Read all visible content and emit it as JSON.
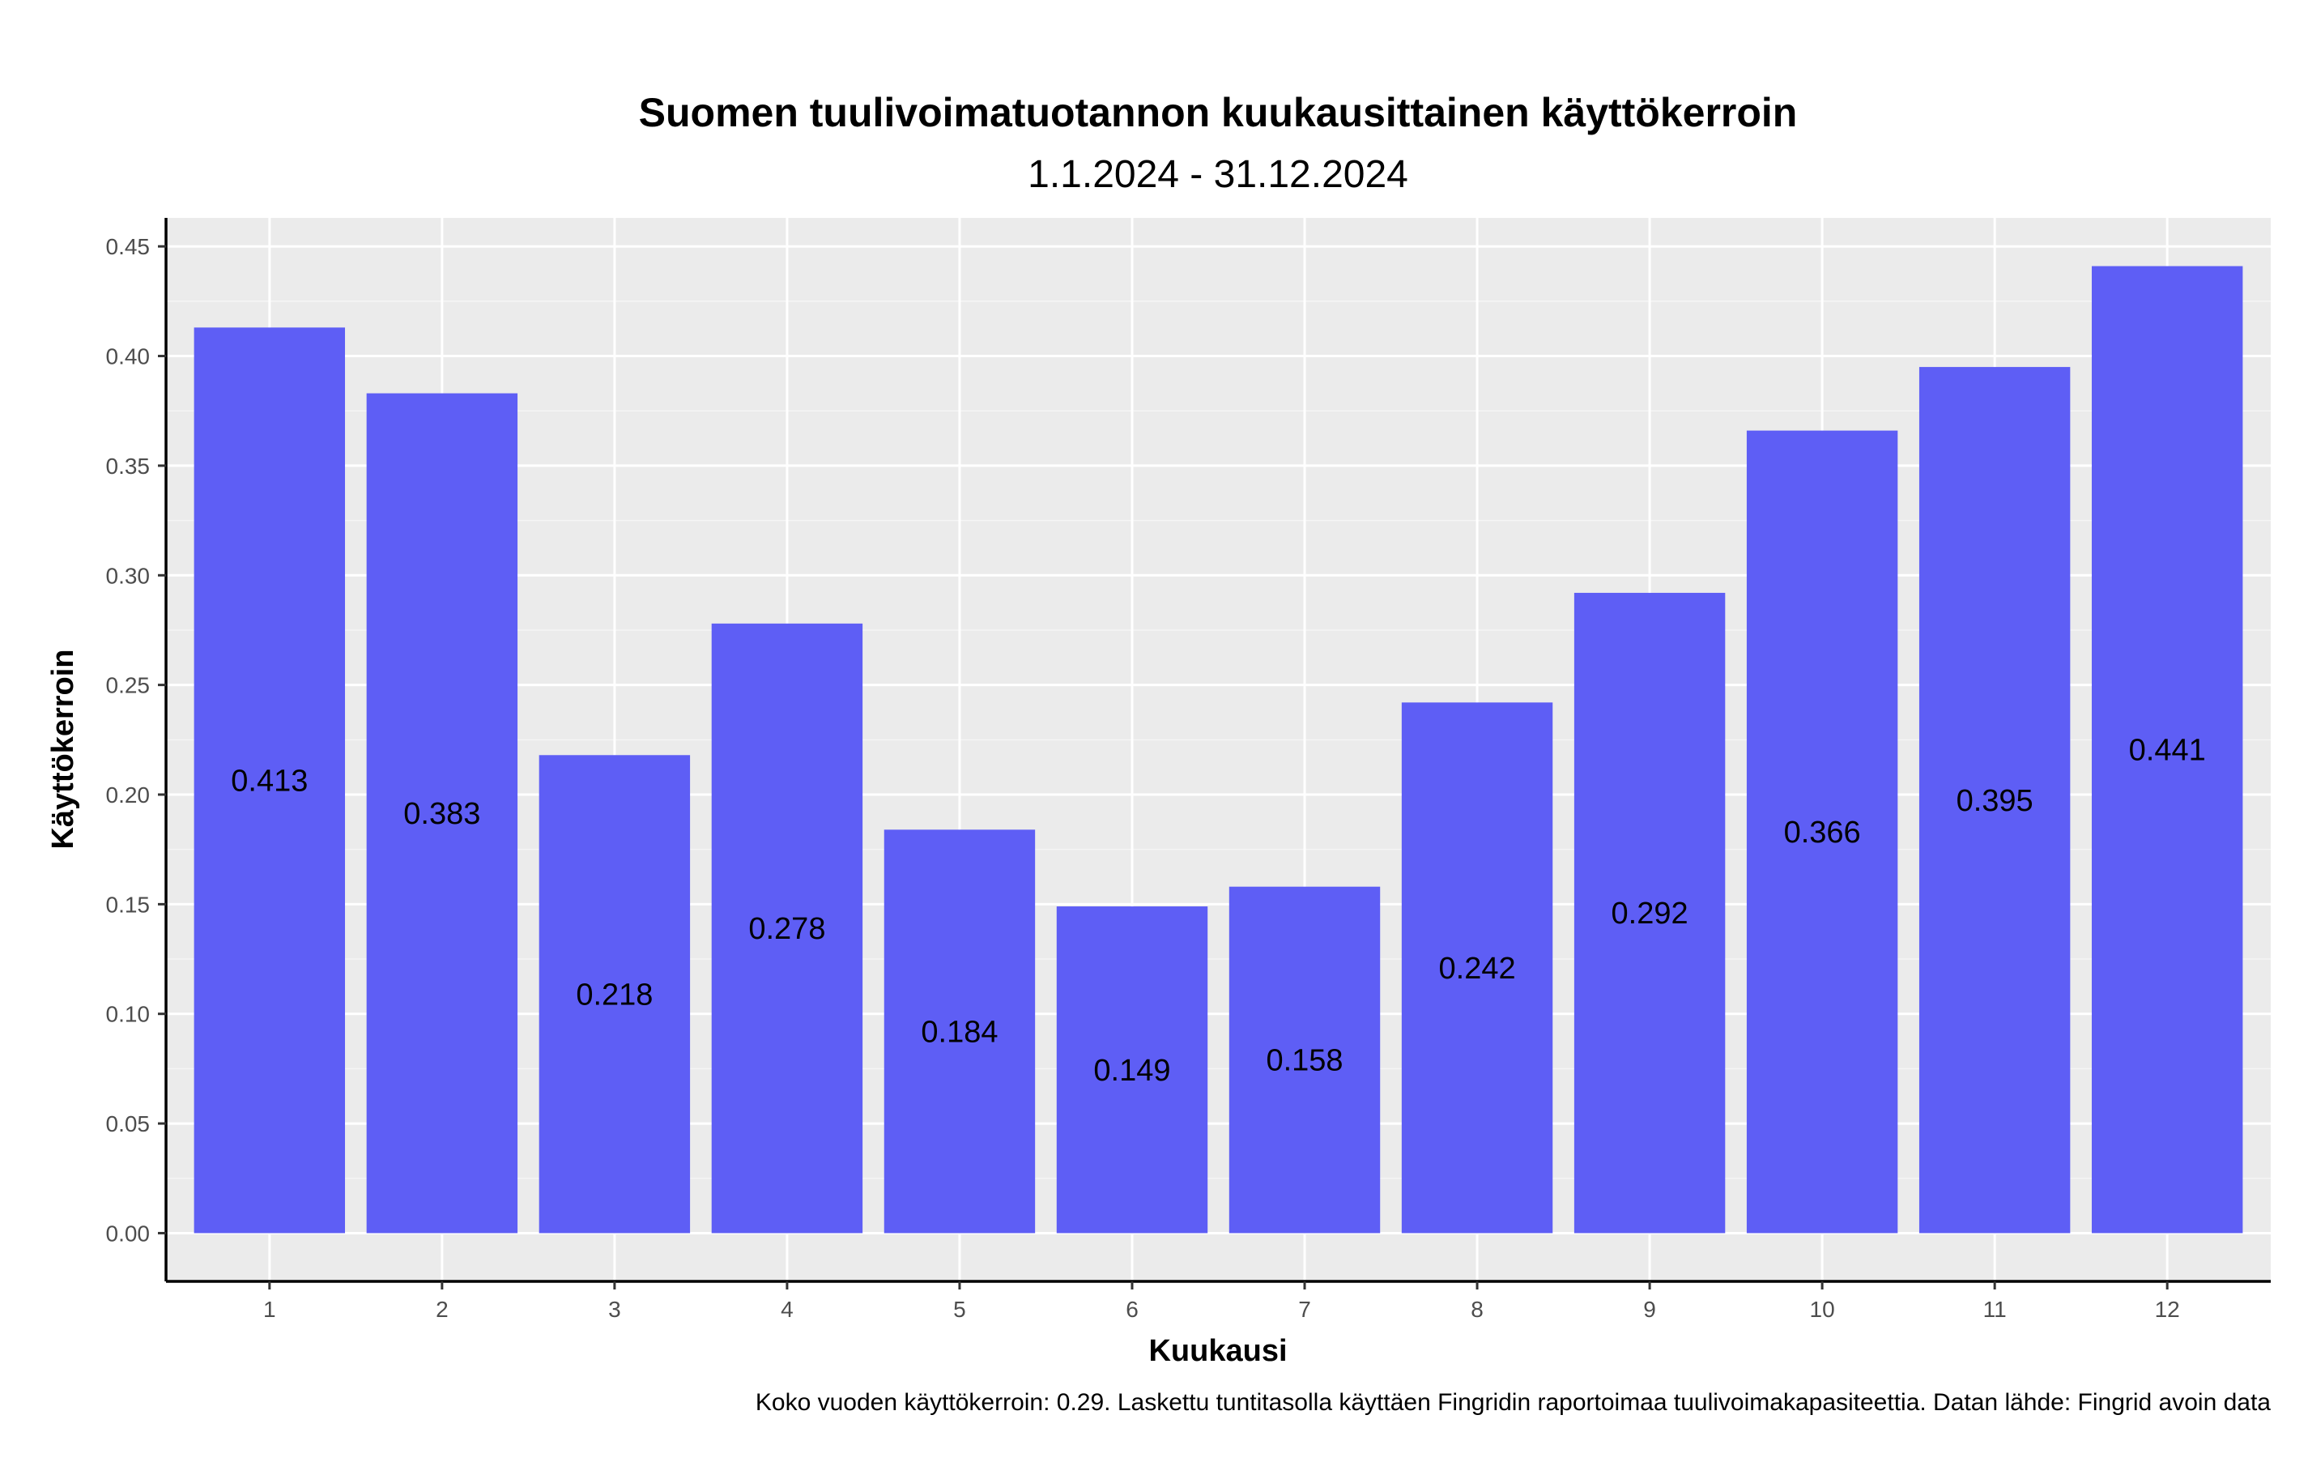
{
  "chart_data": {
    "type": "bar",
    "title": "Suomen tuulivoimatuotannon kuukausittainen käyttökerroin",
    "subtitle": "1.1.2024 - 31.12.2024",
    "xlabel": "Kuukausi",
    "ylabel": "Käyttökerroin",
    "caption": "Koko vuoden käyttökerroin: 0.29. Laskettu tuntitasolla käyttäen Fingridin raportoimaa tuulivoimakapasiteettia. Datan lähde: Fingrid avoin data",
    "categories": [
      "1",
      "2",
      "3",
      "4",
      "5",
      "6",
      "7",
      "8",
      "9",
      "10",
      "11",
      "12"
    ],
    "values": [
      0.413,
      0.383,
      0.218,
      0.278,
      0.184,
      0.149,
      0.158,
      0.242,
      0.292,
      0.366,
      0.395,
      0.441
    ],
    "data_labels": [
      "0.413",
      "0.383",
      "0.218",
      "0.278",
      "0.184",
      "0.149",
      "0.158",
      "0.242",
      "0.292",
      "0.366",
      "0.395",
      "0.441"
    ],
    "ylim": [
      -0.022,
      0.463
    ],
    "yticks": [
      0,
      0.05,
      0.1,
      0.15,
      0.2,
      0.25,
      0.3,
      0.35,
      0.4,
      0.45
    ],
    "ytick_labels": [
      "0.00",
      "0.05",
      "0.10",
      "0.15",
      "0.20",
      "0.25",
      "0.30",
      "0.35",
      "0.40",
      "0.45"
    ],
    "grid": true,
    "legend": "none",
    "colors": {
      "bar": "#5e5ef5",
      "panel": "#ebebeb",
      "grid": "#ffffff"
    }
  }
}
